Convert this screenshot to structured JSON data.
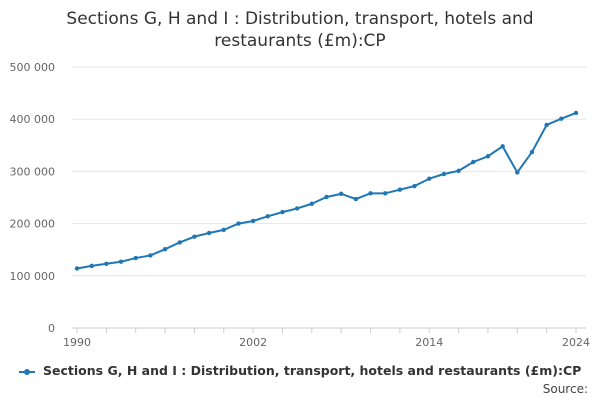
{
  "chart": {
    "title_line1": "Sections G, H and I : Distribution, transport, hotels and",
    "title_line2": "restaurants (£m):CP",
    "legend_label": "Sections G, H and I : Distribution, transport, hotels and restaurants (£m):CP",
    "source_label": "Source:",
    "line_color": "#1f77b4",
    "grid_color": "#e6e6e6"
  },
  "chart_data": {
    "type": "line",
    "title": "Sections G, H and I : Distribution, transport, hotels and restaurants (£m):CP",
    "xlabel": "",
    "ylabel": "",
    "x": [
      1990,
      1991,
      1992,
      1993,
      1994,
      1995,
      1996,
      1997,
      1998,
      1999,
      2000,
      2001,
      2002,
      2003,
      2004,
      2005,
      2006,
      2007,
      2008,
      2009,
      2010,
      2011,
      2012,
      2013,
      2014,
      2015,
      2016,
      2017,
      2018,
      2019,
      2020,
      2021,
      2022,
      2023,
      2024
    ],
    "series": [
      {
        "name": "Sections G, H and I : Distribution, transport, hotels and restaurants (£m):CP",
        "values": [
          114000,
          119000,
          123000,
          127000,
          134000,
          139000,
          151000,
          164000,
          175000,
          182000,
          188000,
          200000,
          205000,
          214000,
          222000,
          229000,
          238000,
          251000,
          257000,
          247000,
          258000,
          258000,
          265000,
          272000,
          286000,
          295000,
          301000,
          318000,
          329000,
          348000,
          298000,
          337000,
          389000,
          401000,
          412000
        ]
      }
    ],
    "x_ticks": [
      "1990",
      "2002",
      "2014",
      "2024"
    ],
    "y_ticks": [
      "0",
      "100 000",
      "200 000",
      "300 000",
      "400 000",
      "500 000"
    ],
    "xlim": [
      1990,
      2024
    ],
    "ylim": [
      0,
      500000
    ],
    "grid": true,
    "legend_position": "bottom"
  }
}
